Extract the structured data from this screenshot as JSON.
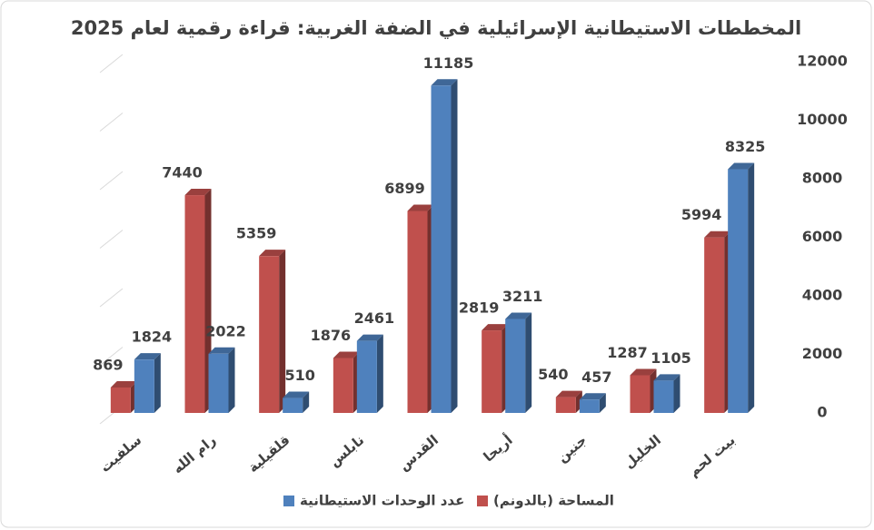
{
  "chart_data": {
    "type": "bar3d",
    "title": "المخططات الاستيطانية الإسرائيلية في الضفة الغربية: قراءة رقمية لعام 2025",
    "categories": [
      "سلفيت",
      "رام الله",
      "قلقيلية",
      "نابلس",
      "القدس",
      "أريحا",
      "جنين",
      "الخليل",
      "بيت لحم"
    ],
    "series": [
      {
        "name": "المساحة (بالدونم)",
        "color": "#c0504d",
        "values": [
          869,
          7440,
          5359,
          1876,
          6899,
          2819,
          540,
          1287,
          5994
        ]
      },
      {
        "name": "عدد الوحدات الاستيطانية",
        "color": "#4f81bd",
        "values": [
          1824,
          2022,
          510,
          2461,
          11185,
          3211,
          457,
          1105,
          8325
        ]
      }
    ],
    "ylim": [
      0,
      12000
    ],
    "yticks": [
      0,
      2000,
      4000,
      6000,
      8000,
      10000,
      12000
    ],
    "axis_side": "right",
    "grid": true,
    "legend": "bottom"
  }
}
